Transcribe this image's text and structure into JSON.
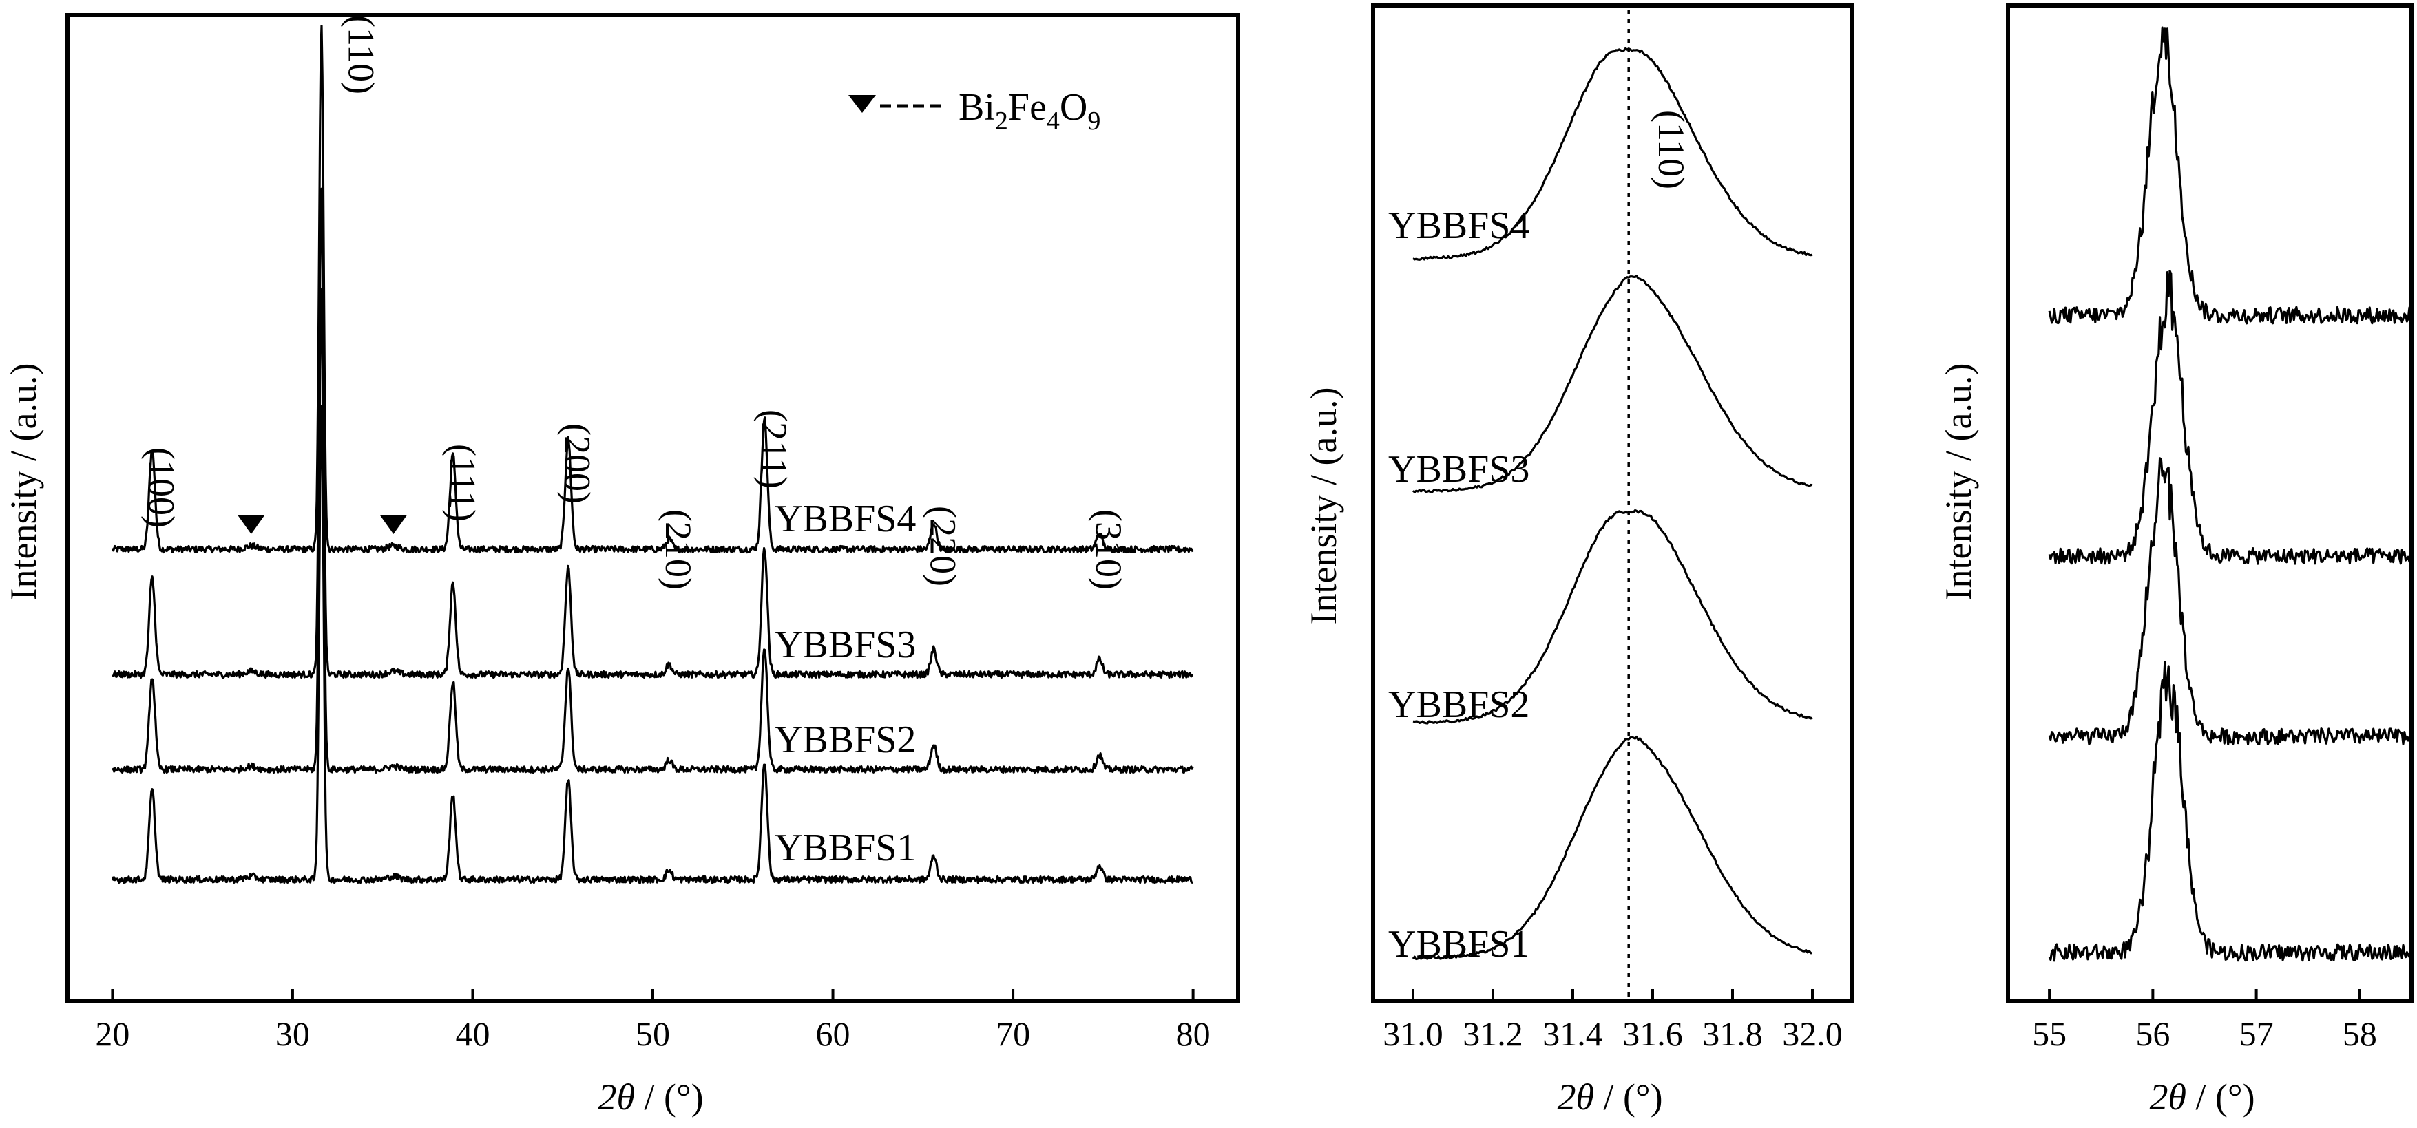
{
  "chart_data": [
    {
      "type": "line",
      "xlabel_var": "2θ",
      "xlabel_unit": " / (°)",
      "ylabel": "Intensity / (a.u.)",
      "xlim": [
        17.5,
        82.5
      ],
      "x_ticks": [
        20,
        30,
        40,
        50,
        60,
        70,
        80
      ],
      "series": [
        {
          "name": "YBBFS4",
          "label": "YBBFS4"
        },
        {
          "name": "YBBFS3",
          "label": "YBBFS3"
        },
        {
          "name": "YBBFS2",
          "label": "YBBFS2"
        },
        {
          "name": "YBBFS1",
          "label": "YBBFS1"
        }
      ],
      "peaks": [
        {
          "hkl": "(100)",
          "position": 22.2,
          "height": 0.19
        },
        {
          "hkl": "(110)",
          "position": 31.6,
          "height": 1.0
        },
        {
          "hkl": "(111)",
          "position": 38.9,
          "height": 0.18
        },
        {
          "hkl": "(200)",
          "position": 45.3,
          "height": 0.21
        },
        {
          "hkl": "(210)",
          "position": 50.9,
          "height": 0.02
        },
        {
          "hkl": "(211)",
          "position": 56.2,
          "height": 0.25
        },
        {
          "hkl": "(220)",
          "position": 65.6,
          "height": 0.05
        },
        {
          "hkl": "(310)",
          "position": 74.8,
          "height": 0.03
        }
      ],
      "impurity_markers": [
        27.7,
        35.6
      ],
      "legend": {
        "symbol": "▼",
        "dashes": "----",
        "text_parts": [
          "Bi",
          "2",
          "Fe",
          "4",
          "O",
          "9"
        ]
      }
    },
    {
      "type": "line",
      "xlabel_var": "2θ",
      "xlabel_unit": " / (°)",
      "ylabel": "Intensity / (a.u.)",
      "xlim": [
        30.9,
        32.1
      ],
      "x_ticks": [
        "31.0",
        "31.2",
        "31.4",
        "31.6",
        "31.8",
        "32.0"
      ],
      "reference_line": 31.54,
      "reference_label": "(110)",
      "series": [
        {
          "name": "YBBFS4",
          "label": "YBBFS4",
          "peak_center": 31.53
        },
        {
          "name": "YBBFS3",
          "label": "YBBFS3",
          "peak_center": 31.55
        },
        {
          "name": "YBBFS2",
          "label": "YBBFS2",
          "peak_center": 31.54
        },
        {
          "name": "YBBFS1",
          "label": "YBBFS1",
          "peak_center": 31.55
        }
      ]
    },
    {
      "type": "line",
      "xlabel_var": "2θ",
      "xlabel_unit": " / (°)",
      "ylabel": "Intensity / (a.u.)",
      "xlim": [
        54.6,
        58.5
      ],
      "x_ticks": [
        55,
        56,
        57,
        58
      ],
      "series": [
        {
          "name": "YBBFS4",
          "peak_center": 56.1
        },
        {
          "name": "YBBFS3",
          "peak_center": 56.15
        },
        {
          "name": "YBBFS2",
          "peak_center": 56.1
        },
        {
          "name": "YBBFS1",
          "peak_center": 56.15
        }
      ]
    }
  ]
}
